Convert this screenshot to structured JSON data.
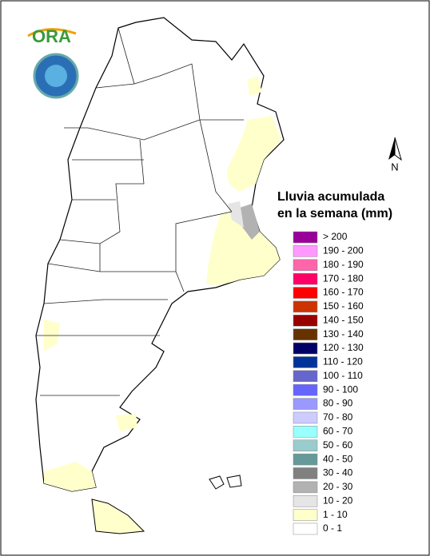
{
  "map": {
    "logo_text": "ORA",
    "north_label": "N",
    "legend": {
      "title_lines": [
        "Lluvia acumulada",
        "en la semana (mm)"
      ],
      "items": [
        {
          "label": "> 200",
          "color": "#990099"
        },
        {
          "label": "190 - 200",
          "color": "#ff99ff"
        },
        {
          "label": "180 - 190",
          "color": "#ff66aa"
        },
        {
          "label": "170 - 180",
          "color": "#ff0066"
        },
        {
          "label": "160 - 170",
          "color": "#ff0000"
        },
        {
          "label": "150 - 160",
          "color": "#cc3300"
        },
        {
          "label": "140 - 150",
          "color": "#990000"
        },
        {
          "label": "130 - 140",
          "color": "#663300"
        },
        {
          "label": "120 - 130",
          "color": "#000066"
        },
        {
          "label": "110 - 120",
          "color": "#003399"
        },
        {
          "label": "100 - 110",
          "color": "#6666cc"
        },
        {
          "label": "90 - 100",
          "color": "#6666ff"
        },
        {
          "label": "80 - 90",
          "color": "#9999ff"
        },
        {
          "label": "70 - 80",
          "color": "#ccccff"
        },
        {
          "label": "60 - 70",
          "color": "#99ffff"
        },
        {
          "label": "50 - 60",
          "color": "#99cccc"
        },
        {
          "label": "40 - 50",
          "color": "#669999"
        },
        {
          "label": "30 - 40",
          "color": "#808080"
        },
        {
          "label": "20 - 30",
          "color": "#b2b2b2"
        },
        {
          "label": "10 - 20",
          "color": "#e5e5e5"
        },
        {
          "label": "1 - 10",
          "color": "#ffffcc"
        },
        {
          "label": "0 - 1",
          "color": "#ffffff"
        }
      ]
    }
  }
}
